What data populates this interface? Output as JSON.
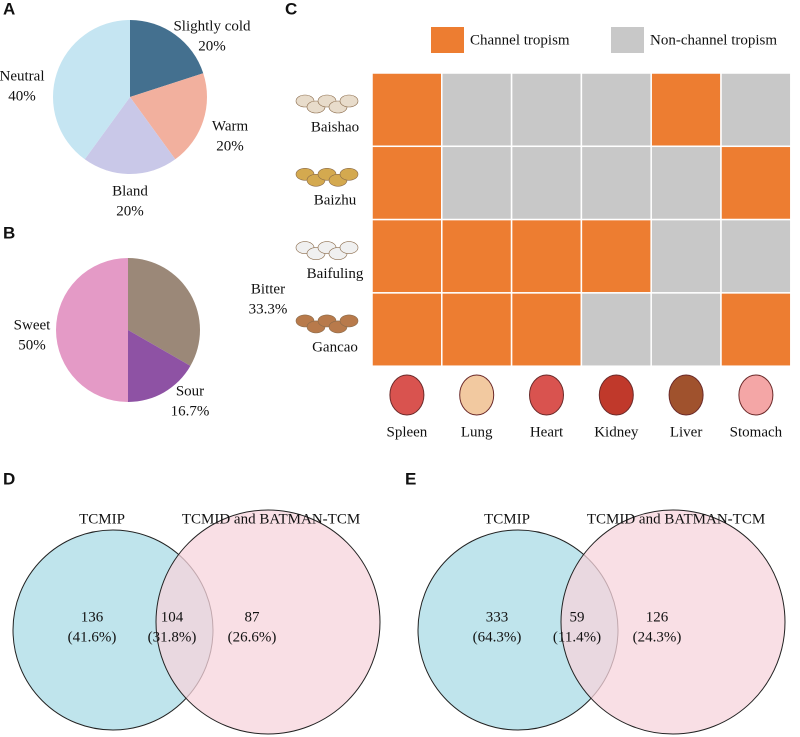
{
  "chart_data": [
    {
      "type": "pie",
      "panel": "A",
      "categories": [
        "Slightly cold",
        "Warm",
        "Bland",
        "Neutral"
      ],
      "values": [
        20,
        20,
        20,
        40
      ],
      "value_labels": [
        "20%",
        "20%",
        "20%",
        "40%"
      ],
      "colors": [
        "#44708f",
        "#f2b09e",
        "#c9c8e8",
        "#c5e5f2"
      ]
    },
    {
      "type": "pie",
      "panel": "B",
      "categories": [
        "Bitter",
        "Sour",
        "Sweet"
      ],
      "values": [
        33.3,
        16.7,
        50
      ],
      "value_labels": [
        "33.3%",
        "16.7%",
        "50%"
      ],
      "colors": [
        "#9b8878",
        "#8e52a4",
        "#e49ac6"
      ]
    },
    {
      "type": "heatmap",
      "panel": "C",
      "rows": [
        "Baishao",
        "Baizhu",
        "Baifuling",
        "Gancao"
      ],
      "columns": [
        "Spleen",
        "Lung",
        "Heart",
        "Kidney",
        "Liver",
        "Stomach"
      ],
      "values": [
        [
          1,
          0,
          0,
          0,
          1,
          0
        ],
        [
          1,
          0,
          0,
          0,
          0,
          1
        ],
        [
          1,
          1,
          1,
          1,
          0,
          0
        ],
        [
          1,
          1,
          1,
          0,
          0,
          1
        ]
      ],
      "legend": [
        {
          "name": "Channel tropism",
          "value": 1,
          "color": "#ed7d31"
        },
        {
          "name": "Non-channel tropism",
          "value": 0,
          "color": "#c8c8c8"
        }
      ]
    },
    {
      "type": "venn",
      "panel": "D",
      "sets": [
        "TCMIP",
        "TCMID and BATMAN-TCM"
      ],
      "colors": [
        "#bfe4ec",
        "#f7d4dc"
      ],
      "values": [
        136,
        104,
        87
      ],
      "shares": [
        41.6,
        31.8,
        26.6
      ],
      "share_labels": [
        "(41.6%)",
        "(31.8%)",
        "(26.6%)"
      ]
    },
    {
      "type": "venn",
      "panel": "E",
      "sets": [
        "TCMIP",
        "TCMID and BATMAN-TCM"
      ],
      "colors": [
        "#bfe4ec",
        "#f7d4dc"
      ],
      "values": [
        333,
        59,
        126
      ],
      "shares": [
        64.3,
        11.4,
        24.3
      ],
      "share_labels": [
        "(64.3%)",
        "(11.4%)",
        "(24.3%)"
      ]
    }
  ]
}
